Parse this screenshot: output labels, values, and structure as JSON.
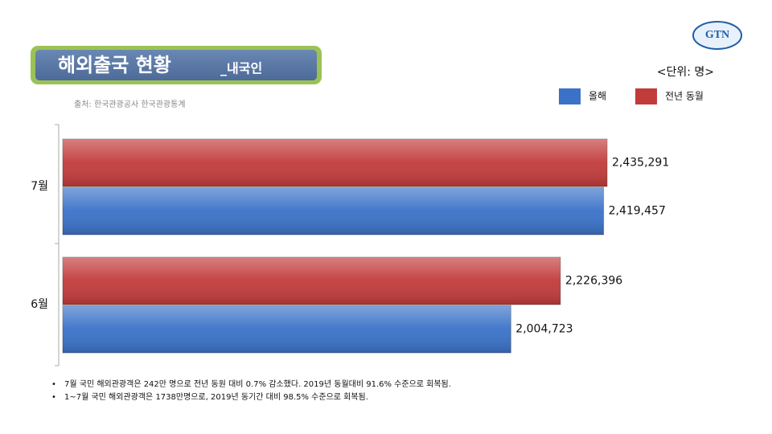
{
  "chart_data": {
    "type": "bar",
    "orientation": "horizontal",
    "title": "해외출국 현황",
    "subtitle": "_내국인",
    "source": "출처: 한국관광공사 한국관광통계",
    "unit_label": "<단위: 명>",
    "logo": "GTN",
    "categories": [
      "7월",
      "6월"
    ],
    "series": [
      {
        "name": "올해",
        "color": "#3a72c8",
        "values": [
          2419457,
          2004723
        ],
        "value_labels": [
          "2,419,457",
          "2,004,723"
        ]
      },
      {
        "name": "전년 동월",
        "color": "#c23b3b",
        "values": [
          2435291,
          2226396
        ],
        "value_labels": [
          "2,435,291",
          "2,226,396"
        ]
      }
    ],
    "legend": "top-right",
    "notes": [
      "7월 국민 해외관광객은 242만 명으로 전년 동원 대비 0.7% 감소했다. 2019년 동월대비 91.6% 수준으로 회복됨.",
      "1~7월 국민 해외관광객은 1738만명으로, 2019년 동기간 대비 98.5% 수준으로 회복됨."
    ]
  }
}
